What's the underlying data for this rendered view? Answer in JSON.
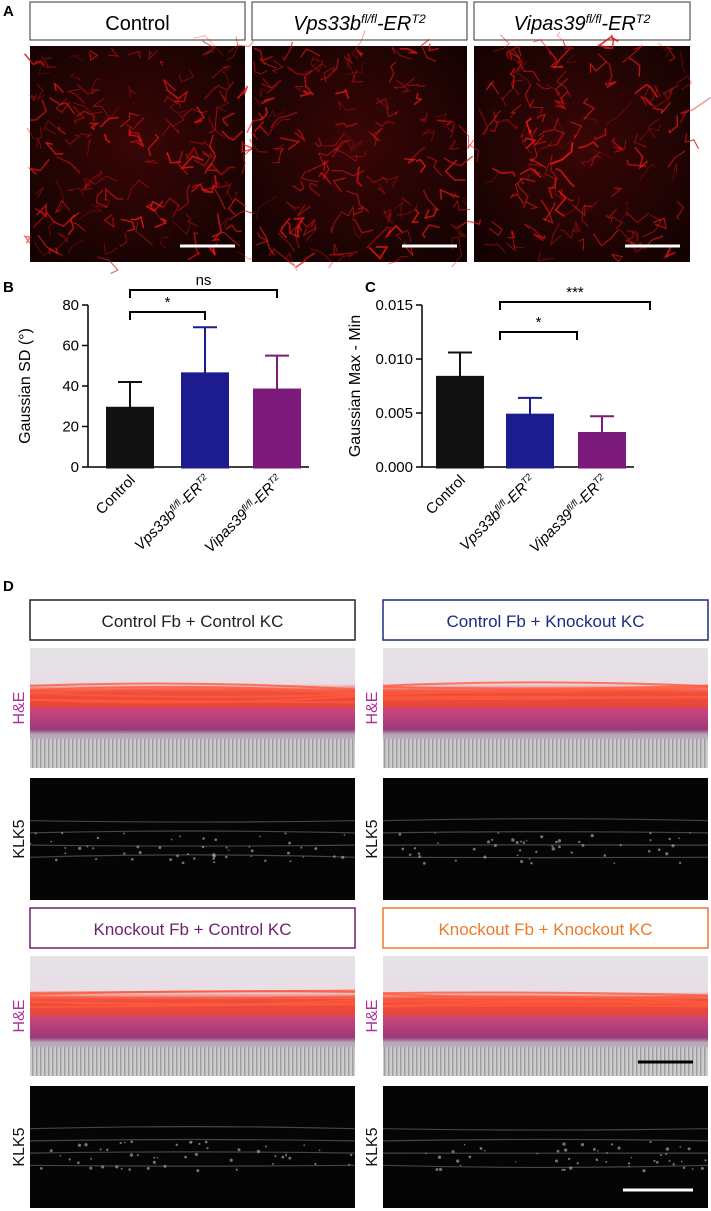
{
  "panel_labels": [
    "A",
    "B",
    "C",
    "D"
  ],
  "panel_a": {
    "headers": [
      [
        "Control"
      ],
      [
        "Vps33b",
        "fl/fl",
        "-ER",
        "T2"
      ],
      [
        "Vipas39",
        "fl/fl",
        "-ER",
        "T2"
      ]
    ]
  },
  "chart_data": [
    {
      "type": "bar",
      "y_label": "Gaussian SD (°)",
      "categories": [
        [
          "Control"
        ],
        [
          "Vps33b",
          "fl/fl",
          "-ER",
          "T2"
        ],
        [
          "Vipas39",
          "fl/fl",
          "-ER",
          "T2"
        ]
      ],
      "values": [
        29,
        46,
        38
      ],
      "errors": [
        13,
        23,
        17
      ],
      "colors": [
        "#111111",
        "#1c1c8e",
        "#7b1a7b"
      ],
      "ylim": [
        0,
        80
      ],
      "yticks": [
        0,
        20,
        40,
        60,
        80
      ],
      "annotations": [
        "*",
        "ns"
      ]
    },
    {
      "type": "bar",
      "y_label": "Gaussian Max - Min",
      "categories": [
        [
          "Control"
        ],
        [
          "Vps33b",
          "fl/fl",
          "-ER",
          "T2"
        ],
        [
          "Vipas39",
          "fl/fl",
          "-ER",
          "T2"
        ]
      ],
      "values": [
        0.0083,
        0.0048,
        0.0031
      ],
      "errors": [
        0.0023,
        0.0016,
        0.0016
      ],
      "colors": [
        "#111111",
        "#1c1c8e",
        "#7b1a7b"
      ],
      "ylim": [
        0,
        0.015
      ],
      "yticks": [
        {
          "value": 0,
          "label": "0.000"
        },
        {
          "value": 0.005,
          "label": "0.005"
        },
        {
          "value": 0.01,
          "label": "0.010"
        },
        {
          "value": 0.015,
          "label": "0.015"
        }
      ],
      "annotations": [
        "*",
        "***"
      ]
    }
  ],
  "panel_d": {
    "stain_labels": [
      "H&E",
      "KLK5"
    ],
    "groups": [
      {
        "title": "Control Fb + Control KC",
        "color": "#222222"
      },
      {
        "title": "Control Fb + Knockout KC",
        "color": "#1f2a80"
      },
      {
        "title": "Knockout Fb + Control KC",
        "color": "#6e1f6e"
      },
      {
        "title": "Knockout Fb + Knockout KC",
        "color": "#ef7a2a"
      }
    ]
  }
}
